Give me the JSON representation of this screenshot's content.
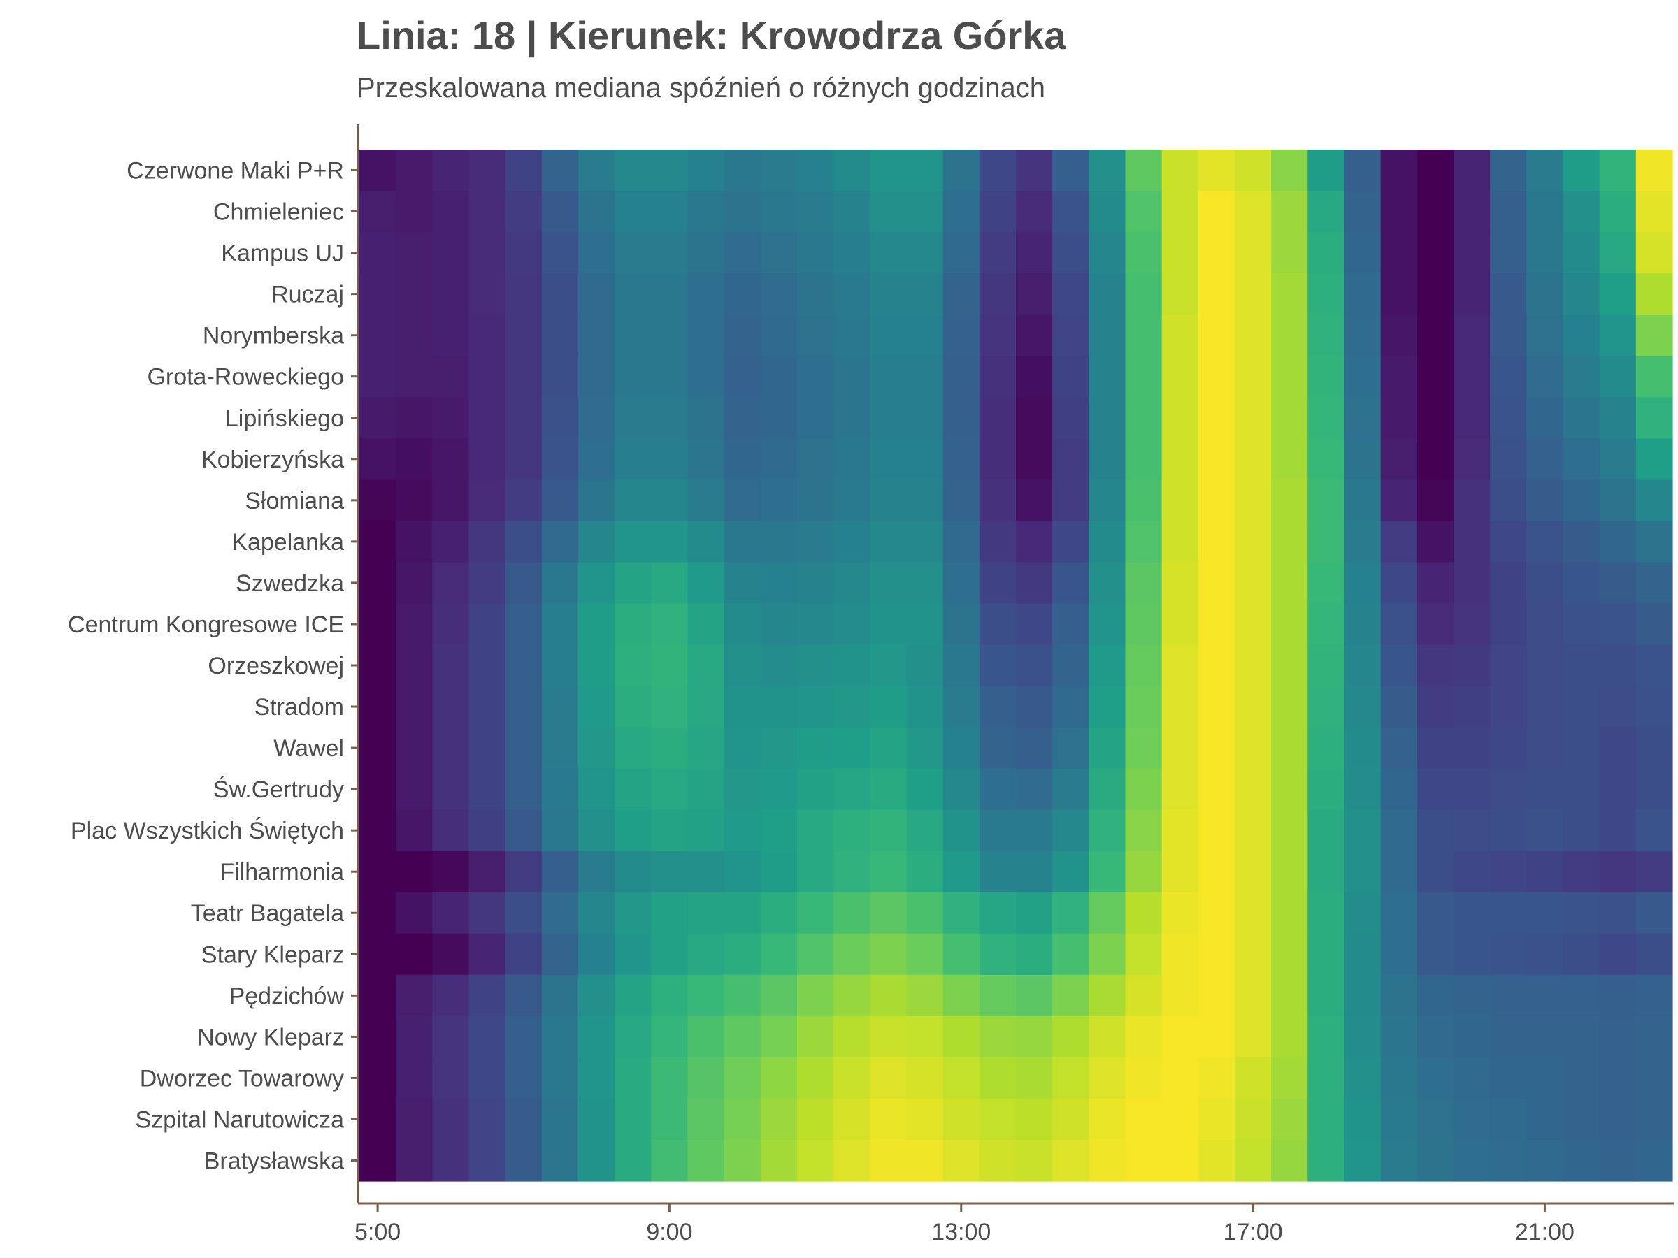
{
  "chart_data": {
    "type": "heatmap",
    "title": "Linia: 18 | Kierunek: Krowodrza Górka",
    "subtitle": "Przeskalowana mediana spóźnień o różnych godzinach",
    "x_hours": [
      "5:00",
      "5:30",
      "6:00",
      "6:30",
      "7:00",
      "7:30",
      "8:00",
      "8:30",
      "9:00",
      "9:30",
      "10:00",
      "10:30",
      "11:00",
      "11:30",
      "12:00",
      "12:30",
      "13:00",
      "13:30",
      "14:00",
      "14:30",
      "15:00",
      "15:30",
      "16:00",
      "16:30",
      "17:00",
      "17:30",
      "18:00",
      "18:30",
      "19:00",
      "19:30",
      "20:00",
      "20:30",
      "21:00",
      "21:30",
      "22:00",
      "22:30"
    ],
    "x_ticks": [
      "5:00",
      "9:00",
      "13:00",
      "17:00",
      "21:00"
    ],
    "stops": [
      "Czerwone Maki P+R",
      "Chmieleniec",
      "Kampus UJ",
      "Ruczaj",
      "Norymberska",
      "Grota-Roweckiego",
      "Lipińskiego",
      "Kobierzyńska",
      "Słomiana",
      "Kapelanka",
      "Szwedzka",
      "Centrum Kongresowe ICE",
      "Orzeszkowej",
      "Stradom",
      "Wawel",
      "Św.Gertrudy",
      "Plac Wszystkich Świętych",
      "Filharmonia",
      "Teatr Bagatela",
      "Stary Kleparz",
      "Pędzichów",
      "Nowy Kleparz",
      "Dworzec Towarowy",
      "Szpital Narutowicza",
      "Bratysławska"
    ],
    "colormap": [
      "#440154",
      "#482878",
      "#3e4989",
      "#31688e",
      "#26828e",
      "#1f9e89",
      "#35b779",
      "#6ece58",
      "#b5de2b",
      "#fde725"
    ],
    "scale": [
      0,
      1
    ],
    "values": [
      [
        0.05,
        0.07,
        0.1,
        0.12,
        0.2,
        0.32,
        0.42,
        0.47,
        0.47,
        0.44,
        0.4,
        0.42,
        0.44,
        0.48,
        0.52,
        0.52,
        0.38,
        0.22,
        0.15,
        0.3,
        0.5,
        0.75,
        0.92,
        0.96,
        0.93,
        0.82,
        0.55,
        0.3,
        0.05,
        0.0,
        0.1,
        0.32,
        0.42,
        0.55,
        0.65,
        0.98
      ],
      [
        0.08,
        0.07,
        0.09,
        0.12,
        0.18,
        0.28,
        0.38,
        0.44,
        0.44,
        0.4,
        0.38,
        0.4,
        0.42,
        0.45,
        0.5,
        0.5,
        0.36,
        0.2,
        0.12,
        0.26,
        0.48,
        0.72,
        0.92,
        0.99,
        0.95,
        0.85,
        0.6,
        0.32,
        0.05,
        0.0,
        0.1,
        0.3,
        0.4,
        0.5,
        0.62,
        0.96
      ],
      [
        0.09,
        0.08,
        0.09,
        0.12,
        0.17,
        0.26,
        0.36,
        0.42,
        0.42,
        0.38,
        0.35,
        0.37,
        0.4,
        0.43,
        0.47,
        0.47,
        0.34,
        0.18,
        0.1,
        0.24,
        0.46,
        0.71,
        0.92,
        0.99,
        0.95,
        0.85,
        0.62,
        0.33,
        0.05,
        0.0,
        0.1,
        0.3,
        0.4,
        0.48,
        0.6,
        0.94
      ],
      [
        0.09,
        0.08,
        0.09,
        0.12,
        0.16,
        0.24,
        0.34,
        0.4,
        0.4,
        0.36,
        0.33,
        0.35,
        0.38,
        0.41,
        0.45,
        0.45,
        0.32,
        0.16,
        0.08,
        0.22,
        0.45,
        0.7,
        0.92,
        0.99,
        0.95,
        0.86,
        0.63,
        0.34,
        0.05,
        0.0,
        0.1,
        0.28,
        0.38,
        0.46,
        0.56,
        0.88
      ],
      [
        0.09,
        0.08,
        0.09,
        0.11,
        0.16,
        0.24,
        0.34,
        0.4,
        0.4,
        0.36,
        0.32,
        0.34,
        0.37,
        0.4,
        0.44,
        0.44,
        0.31,
        0.15,
        0.06,
        0.21,
        0.45,
        0.7,
        0.93,
        0.99,
        0.95,
        0.86,
        0.64,
        0.35,
        0.06,
        0.0,
        0.11,
        0.28,
        0.37,
        0.44,
        0.52,
        0.8
      ],
      [
        0.09,
        0.08,
        0.08,
        0.11,
        0.16,
        0.24,
        0.34,
        0.4,
        0.4,
        0.36,
        0.31,
        0.33,
        0.36,
        0.39,
        0.43,
        0.43,
        0.3,
        0.14,
        0.04,
        0.2,
        0.45,
        0.7,
        0.93,
        0.99,
        0.95,
        0.86,
        0.65,
        0.36,
        0.07,
        0.0,
        0.11,
        0.27,
        0.35,
        0.42,
        0.48,
        0.7
      ],
      [
        0.07,
        0.06,
        0.07,
        0.11,
        0.16,
        0.25,
        0.35,
        0.42,
        0.42,
        0.38,
        0.32,
        0.33,
        0.36,
        0.39,
        0.43,
        0.43,
        0.3,
        0.13,
        0.03,
        0.19,
        0.45,
        0.7,
        0.93,
        0.99,
        0.95,
        0.86,
        0.66,
        0.37,
        0.07,
        0.0,
        0.11,
        0.26,
        0.33,
        0.39,
        0.45,
        0.64
      ],
      [
        0.05,
        0.04,
        0.06,
        0.11,
        0.16,
        0.26,
        0.36,
        0.43,
        0.43,
        0.39,
        0.33,
        0.34,
        0.37,
        0.4,
        0.44,
        0.44,
        0.31,
        0.13,
        0.03,
        0.18,
        0.45,
        0.7,
        0.93,
        0.99,
        0.95,
        0.86,
        0.67,
        0.38,
        0.08,
        0.0,
        0.12,
        0.25,
        0.31,
        0.36,
        0.42,
        0.56
      ],
      [
        0.01,
        0.03,
        0.06,
        0.12,
        0.18,
        0.28,
        0.39,
        0.46,
        0.46,
        0.42,
        0.35,
        0.36,
        0.38,
        0.41,
        0.45,
        0.45,
        0.32,
        0.14,
        0.05,
        0.18,
        0.46,
        0.71,
        0.93,
        0.99,
        0.95,
        0.87,
        0.68,
        0.4,
        0.1,
        0.01,
        0.14,
        0.24,
        0.29,
        0.33,
        0.38,
        0.46
      ],
      [
        0.0,
        0.05,
        0.09,
        0.16,
        0.24,
        0.34,
        0.46,
        0.52,
        0.52,
        0.48,
        0.4,
        0.4,
        0.42,
        0.44,
        0.47,
        0.47,
        0.34,
        0.17,
        0.11,
        0.22,
        0.48,
        0.72,
        0.93,
        0.99,
        0.95,
        0.87,
        0.68,
        0.42,
        0.18,
        0.05,
        0.14,
        0.22,
        0.26,
        0.29,
        0.33,
        0.38
      ],
      [
        0.0,
        0.06,
        0.12,
        0.18,
        0.28,
        0.4,
        0.52,
        0.58,
        0.6,
        0.54,
        0.45,
        0.44,
        0.45,
        0.47,
        0.5,
        0.5,
        0.36,
        0.2,
        0.17,
        0.27,
        0.5,
        0.74,
        0.94,
        0.99,
        0.95,
        0.87,
        0.67,
        0.44,
        0.22,
        0.1,
        0.14,
        0.2,
        0.24,
        0.27,
        0.29,
        0.32
      ],
      [
        0.0,
        0.07,
        0.13,
        0.2,
        0.3,
        0.43,
        0.55,
        0.62,
        0.64,
        0.58,
        0.48,
        0.46,
        0.47,
        0.49,
        0.51,
        0.51,
        0.38,
        0.24,
        0.22,
        0.3,
        0.52,
        0.75,
        0.94,
        0.99,
        0.95,
        0.87,
        0.66,
        0.45,
        0.25,
        0.12,
        0.15,
        0.2,
        0.23,
        0.25,
        0.26,
        0.29
      ],
      [
        0.0,
        0.07,
        0.14,
        0.2,
        0.3,
        0.43,
        0.55,
        0.63,
        0.65,
        0.6,
        0.5,
        0.49,
        0.5,
        0.51,
        0.53,
        0.5,
        0.4,
        0.27,
        0.25,
        0.32,
        0.54,
        0.76,
        0.95,
        0.99,
        0.95,
        0.87,
        0.65,
        0.46,
        0.27,
        0.16,
        0.17,
        0.21,
        0.23,
        0.24,
        0.24,
        0.26
      ],
      [
        0.0,
        0.07,
        0.14,
        0.2,
        0.3,
        0.42,
        0.54,
        0.62,
        0.64,
        0.6,
        0.51,
        0.51,
        0.52,
        0.53,
        0.55,
        0.51,
        0.42,
        0.3,
        0.28,
        0.34,
        0.56,
        0.77,
        0.95,
        0.99,
        0.95,
        0.87,
        0.64,
        0.47,
        0.29,
        0.18,
        0.19,
        0.21,
        0.23,
        0.24,
        0.23,
        0.25
      ],
      [
        0.0,
        0.07,
        0.14,
        0.2,
        0.3,
        0.42,
        0.53,
        0.6,
        0.62,
        0.59,
        0.52,
        0.53,
        0.55,
        0.56,
        0.58,
        0.53,
        0.44,
        0.32,
        0.3,
        0.37,
        0.58,
        0.78,
        0.95,
        0.99,
        0.95,
        0.87,
        0.63,
        0.48,
        0.31,
        0.2,
        0.2,
        0.22,
        0.23,
        0.24,
        0.22,
        0.24
      ],
      [
        0.0,
        0.07,
        0.14,
        0.2,
        0.3,
        0.41,
        0.52,
        0.58,
        0.6,
        0.58,
        0.53,
        0.54,
        0.57,
        0.59,
        0.61,
        0.56,
        0.47,
        0.36,
        0.35,
        0.42,
        0.61,
        0.8,
        0.95,
        0.99,
        0.95,
        0.87,
        0.62,
        0.49,
        0.33,
        0.22,
        0.22,
        0.23,
        0.24,
        0.24,
        0.22,
        0.24
      ],
      [
        0.0,
        0.06,
        0.13,
        0.19,
        0.28,
        0.4,
        0.5,
        0.56,
        0.58,
        0.57,
        0.54,
        0.56,
        0.6,
        0.63,
        0.65,
        0.6,
        0.51,
        0.41,
        0.41,
        0.47,
        0.64,
        0.82,
        0.96,
        0.99,
        0.95,
        0.87,
        0.61,
        0.5,
        0.34,
        0.24,
        0.23,
        0.24,
        0.25,
        0.24,
        0.22,
        0.26
      ],
      [
        0.0,
        0.0,
        0.02,
        0.08,
        0.18,
        0.3,
        0.42,
        0.48,
        0.5,
        0.5,
        0.52,
        0.55,
        0.6,
        0.64,
        0.67,
        0.62,
        0.54,
        0.45,
        0.45,
        0.51,
        0.67,
        0.84,
        0.96,
        0.99,
        0.95,
        0.87,
        0.61,
        0.5,
        0.34,
        0.24,
        0.22,
        0.21,
        0.2,
        0.18,
        0.16,
        0.18
      ],
      [
        0.0,
        0.05,
        0.1,
        0.16,
        0.24,
        0.35,
        0.46,
        0.53,
        0.57,
        0.58,
        0.58,
        0.62,
        0.67,
        0.71,
        0.74,
        0.71,
        0.64,
        0.59,
        0.57,
        0.64,
        0.76,
        0.89,
        0.97,
        0.99,
        0.95,
        0.87,
        0.62,
        0.49,
        0.36,
        0.28,
        0.27,
        0.27,
        0.27,
        0.26,
        0.25,
        0.28
      ],
      [
        0.0,
        0.0,
        0.03,
        0.1,
        0.2,
        0.32,
        0.44,
        0.52,
        0.57,
        0.6,
        0.62,
        0.67,
        0.72,
        0.77,
        0.8,
        0.77,
        0.7,
        0.64,
        0.62,
        0.7,
        0.8,
        0.91,
        0.98,
        0.99,
        0.95,
        0.87,
        0.62,
        0.48,
        0.36,
        0.28,
        0.27,
        0.26,
        0.25,
        0.24,
        0.22,
        0.24
      ],
      [
        0.0,
        0.08,
        0.13,
        0.2,
        0.28,
        0.38,
        0.5,
        0.58,
        0.63,
        0.67,
        0.7,
        0.74,
        0.8,
        0.84,
        0.87,
        0.85,
        0.8,
        0.76,
        0.74,
        0.8,
        0.87,
        0.94,
        0.98,
        0.99,
        0.95,
        0.87,
        0.62,
        0.48,
        0.38,
        0.33,
        0.32,
        0.31,
        0.31,
        0.31,
        0.3,
        0.31
      ],
      [
        0.0,
        0.09,
        0.15,
        0.22,
        0.3,
        0.4,
        0.52,
        0.6,
        0.66,
        0.71,
        0.75,
        0.79,
        0.85,
        0.89,
        0.92,
        0.91,
        0.88,
        0.85,
        0.84,
        0.88,
        0.93,
        0.97,
        0.99,
        0.99,
        0.95,
        0.87,
        0.63,
        0.49,
        0.39,
        0.34,
        0.33,
        0.32,
        0.32,
        0.32,
        0.31,
        0.32
      ],
      [
        0.0,
        0.09,
        0.15,
        0.22,
        0.3,
        0.4,
        0.52,
        0.61,
        0.68,
        0.73,
        0.78,
        0.83,
        0.88,
        0.92,
        0.95,
        0.94,
        0.91,
        0.88,
        0.87,
        0.91,
        0.95,
        0.98,
        0.99,
        0.98,
        0.93,
        0.86,
        0.63,
        0.5,
        0.4,
        0.36,
        0.34,
        0.33,
        0.33,
        0.32,
        0.31,
        0.32
      ],
      [
        0.0,
        0.08,
        0.14,
        0.21,
        0.29,
        0.39,
        0.51,
        0.61,
        0.68,
        0.74,
        0.79,
        0.85,
        0.9,
        0.94,
        0.97,
        0.96,
        0.93,
        0.91,
        0.9,
        0.93,
        0.97,
        0.99,
        0.99,
        0.97,
        0.92,
        0.85,
        0.63,
        0.51,
        0.41,
        0.37,
        0.35,
        0.34,
        0.33,
        0.32,
        0.31,
        0.32
      ],
      [
        0.0,
        0.08,
        0.14,
        0.21,
        0.29,
        0.39,
        0.51,
        0.61,
        0.69,
        0.75,
        0.8,
        0.86,
        0.91,
        0.95,
        0.98,
        0.98,
        0.95,
        0.93,
        0.92,
        0.95,
        0.98,
        0.99,
        0.99,
        0.96,
        0.91,
        0.84,
        0.63,
        0.52,
        0.42,
        0.38,
        0.36,
        0.35,
        0.34,
        0.33,
        0.32,
        0.33
      ]
    ]
  }
}
